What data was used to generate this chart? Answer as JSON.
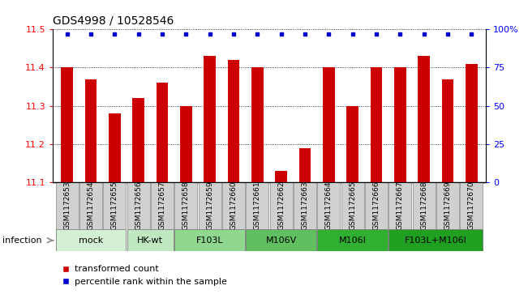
{
  "title": "GDS4998 / 10528546",
  "samples": [
    "GSM1172653",
    "GSM1172654",
    "GSM1172655",
    "GSM1172656",
    "GSM1172657",
    "GSM1172658",
    "GSM1172659",
    "GSM1172660",
    "GSM1172661",
    "GSM1172662",
    "GSM1172663",
    "GSM1172664",
    "GSM1172665",
    "GSM1172666",
    "GSM1172667",
    "GSM1172668",
    "GSM1172669",
    "GSM1172670"
  ],
  "bar_values": [
    11.4,
    11.37,
    11.28,
    11.32,
    11.36,
    11.3,
    11.43,
    11.42,
    11.4,
    11.13,
    11.19,
    11.4,
    11.3,
    11.4,
    11.4,
    11.43,
    11.37,
    11.41
  ],
  "groups": [
    {
      "label": "mock",
      "start": 0,
      "end": 2,
      "color": "#d4f0d4"
    },
    {
      "label": "HK-wt",
      "start": 3,
      "end": 4,
      "color": "#c0e8c0"
    },
    {
      "label": "F103L",
      "start": 5,
      "end": 7,
      "color": "#90d890"
    },
    {
      "label": "M106V",
      "start": 8,
      "end": 10,
      "color": "#60c060"
    },
    {
      "label": "M106I",
      "start": 11,
      "end": 13,
      "color": "#30b030"
    },
    {
      "label": "F103L+M106I",
      "start": 14,
      "end": 17,
      "color": "#20a020"
    }
  ],
  "ylim": [
    11.1,
    11.5
  ],
  "yticks": [
    11.1,
    11.2,
    11.3,
    11.4,
    11.5
  ],
  "right_yticks": [
    0,
    25,
    50,
    75,
    100
  ],
  "right_ytick_labels": [
    "0",
    "25",
    "50",
    "75",
    "100%"
  ],
  "bar_color": "#cc0000",
  "dot_color": "#0000cc",
  "bar_bottom": 11.1,
  "sample_cell_color": "#d0d0d0",
  "infection_label": "infection",
  "legend_bar_label": "transformed count",
  "legend_dot_label": "percentile rank within the sample",
  "title_fontsize": 10,
  "tick_label_fontsize": 8,
  "group_label_fontsize": 8,
  "sample_label_fontsize": 6.5
}
